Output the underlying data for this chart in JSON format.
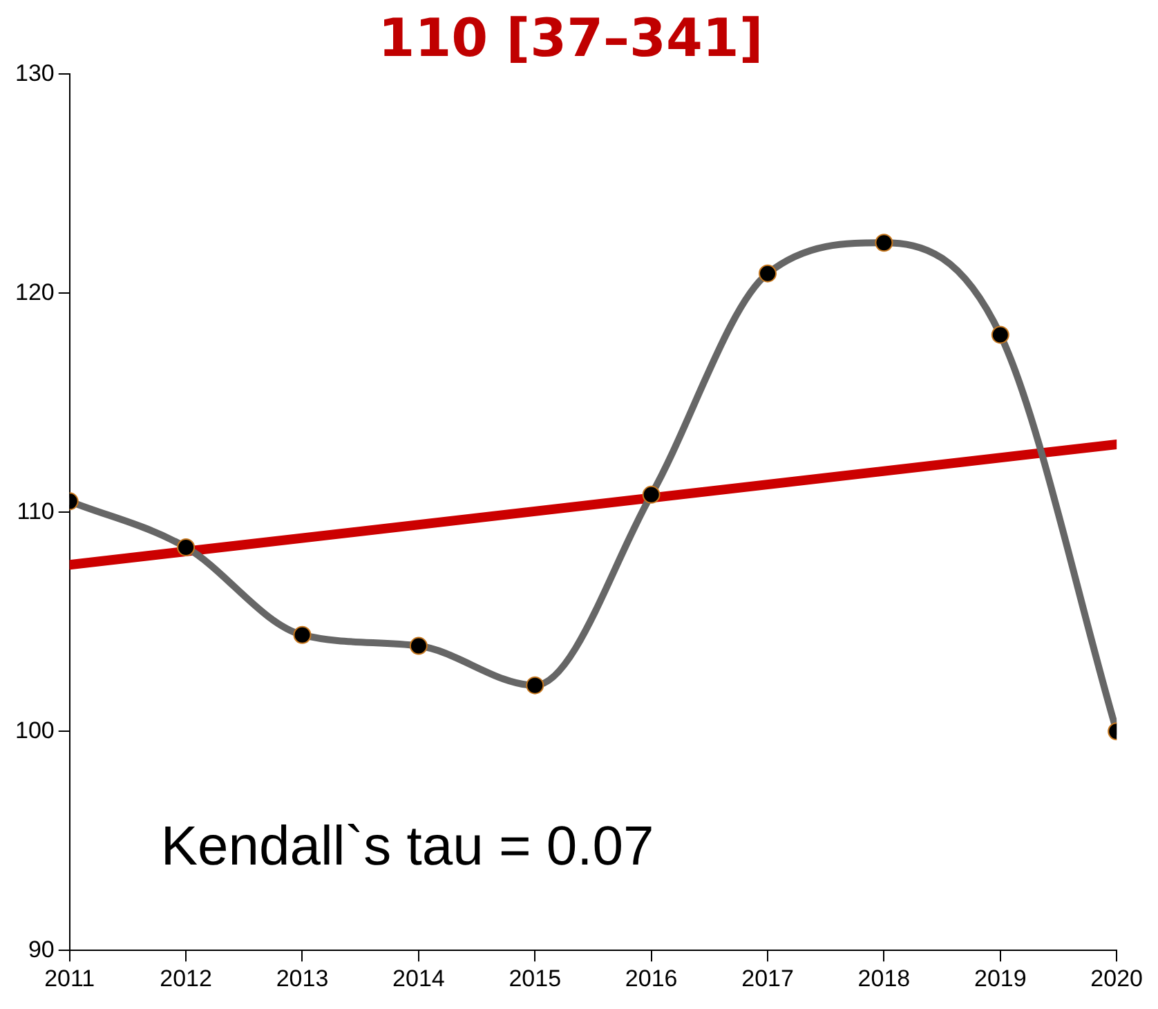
{
  "chart_data": {
    "type": "line",
    "title": "110 [37–341]",
    "x": [
      2011,
      2012,
      2013,
      2014,
      2015,
      2016,
      2017,
      2018,
      2019,
      2020
    ],
    "series": [
      {
        "color": "#666666",
        "values": [
          110.5,
          108.4,
          104.4,
          103.9,
          102.1,
          110.8,
          120.9,
          122.3,
          118.1,
          100.0
        ]
      },
      {
        "color": "#cc0000",
        "x": [
          2011,
          2020
        ],
        "values": [
          107.6,
          113.1
        ],
        "marker": "none"
      }
    ],
    "xlim": [
      2011,
      2020
    ],
    "xticks": [
      2011,
      2012,
      2013,
      2014,
      2015,
      2016,
      2017,
      2018,
      2019,
      2020
    ],
    "ylim": [
      90,
      130
    ],
    "yticks": [
      90,
      100,
      110,
      120,
      130
    ],
    "grid": false,
    "legend": false,
    "marker": "circle",
    "line_style": "solid",
    "annotations": [
      "Kendall`s tau = 0.07"
    ]
  }
}
